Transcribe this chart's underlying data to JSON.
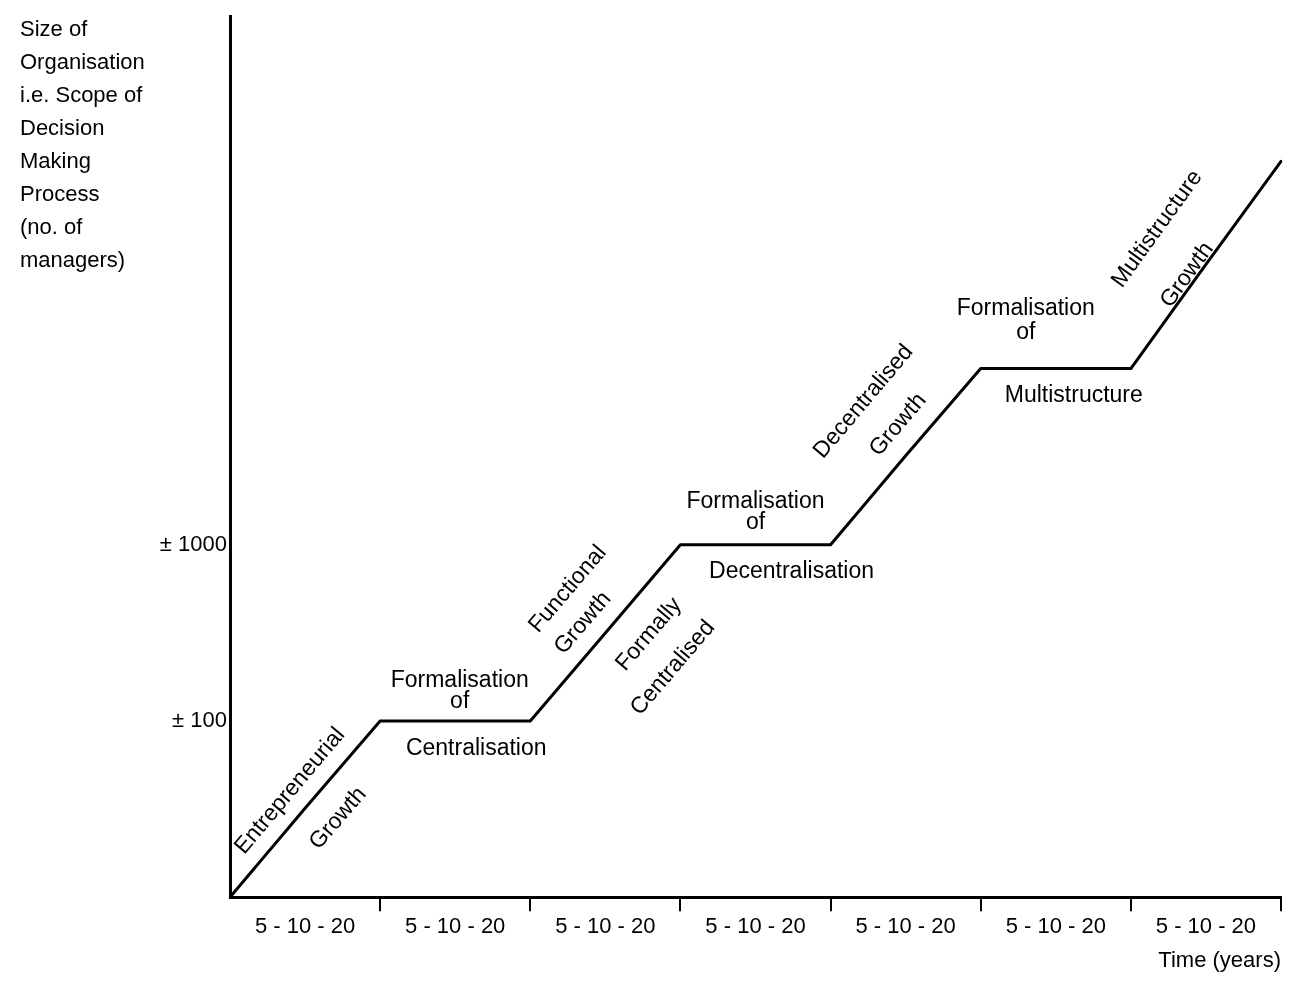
{
  "chart_data": {
    "type": "line",
    "ylabel": "Size of\nOrganisation\ni.e. Scope of\nDecision\nMaking\nProcess\n(no. of\nmanagers)",
    "xlabel": "Time (years)",
    "categories": [
      null,
      "5 - 10 - 20",
      null,
      "5 - 10 - 20",
      null,
      "5 - 10 - 20",
      null,
      "5 - 10 - 20",
      null,
      "5 - 10 - 20",
      null,
      "5 - 10 - 20",
      null,
      "5 - 10 - 20",
      null
    ],
    "values": [
      10,
      32,
      100,
      100,
      100,
      316,
      1000,
      1000,
      1000,
      3200,
      10000,
      10000,
      10000,
      39000,
      150000
    ],
    "color": "#000000",
    "log": "y",
    "grid": false,
    "legend": false,
    "marker": "none",
    "line_style": "solid",
    "ylim": [
      10,
      1000000
    ],
    "yticks": [
      {
        "value": 100,
        "label": "± 100"
      },
      {
        "value": 1000,
        "label": "± 1000"
      }
    ],
    "annotations": [
      "Entrepreneurial",
      "Growth",
      "Formalisation",
      "of",
      "Centralisation",
      "Functional",
      "Growth",
      "Formally",
      "Centralised",
      "Formalisation",
      "of",
      "Decentralisation",
      "Decentralised",
      "Growth",
      "Formalisation",
      "of",
      "Multistructure",
      "Multistructure",
      "Growth"
    ]
  }
}
